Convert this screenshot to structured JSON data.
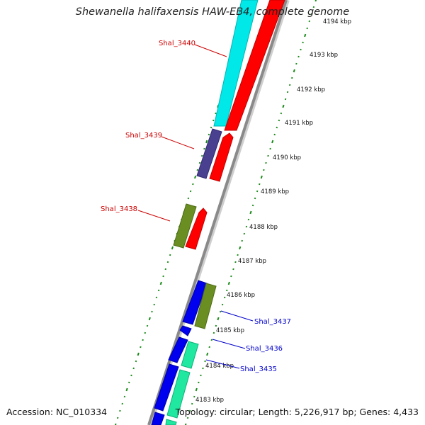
{
  "title": "Shewanella halifaxensis HAW-EB4, complete genome",
  "accession": "Accession: NC_010334",
  "topology": "Topology: circular; Length: 5,226,917 bp; Genes: 4,433",
  "colors": {
    "backbone": "#8a8a8a",
    "tick": "#1a8a1a",
    "label_red": "#cc0000",
    "label_blue": "#0000cc",
    "cyan": "#00e8e8",
    "red": "#ff0000",
    "purple": "#4a4090",
    "olive": "#6b8e23",
    "blue": "#0000ee",
    "seagreen": "#20e8a0"
  },
  "ruler": [
    {
      "label": "4194 kbp"
    },
    {
      "label": "4193 kbp"
    },
    {
      "label": "4192 kbp"
    },
    {
      "label": "4191 kbp"
    },
    {
      "label": "4190 kbp"
    },
    {
      "label": "4189 kbp"
    },
    {
      "label": "4188 kbp"
    },
    {
      "label": "4187 kbp"
    },
    {
      "label": "4186 kbp"
    },
    {
      "label": "4185 kbp"
    },
    {
      "label": "4184 kbp"
    },
    {
      "label": "4183 kbp"
    }
  ],
  "gene_labels": [
    {
      "name": "Shal_3440",
      "color": "label_red"
    },
    {
      "name": "Shal_3439",
      "color": "label_red"
    },
    {
      "name": "Shal_3438",
      "color": "label_red"
    },
    {
      "name": "Shal_3437",
      "color": "label_blue"
    },
    {
      "name": "Shal_3436",
      "color": "label_blue"
    },
    {
      "name": "Shal_3435",
      "color": "label_blue"
    }
  ]
}
